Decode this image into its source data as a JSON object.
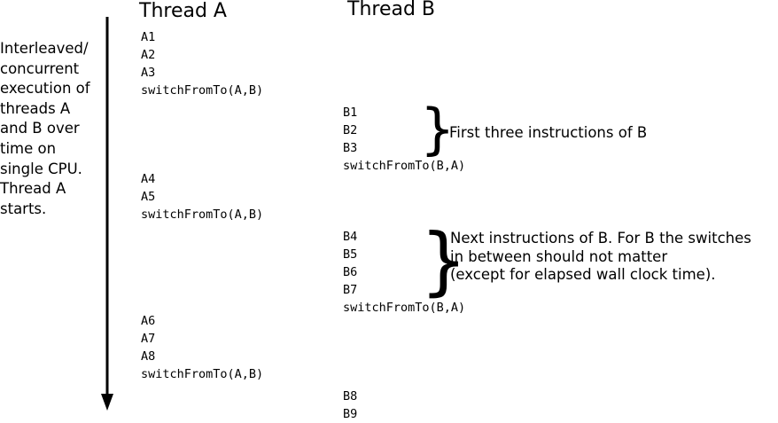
{
  "headers": {
    "thread_a": "Thread A",
    "thread_b": "Thread B"
  },
  "side_note": [
    "Interleaved/",
    "concurrent",
    "execution of",
    "threads A",
    "and B over",
    "time on",
    "single CPU.",
    "Thread A",
    "starts."
  ],
  "thread_a": {
    "block1": [
      "A1",
      "A2",
      "A3",
      "switchFromTo(A,B)"
    ],
    "block2": [
      "A4",
      "A5",
      "switchFromTo(A,B)"
    ],
    "block3": [
      "A6",
      "A7",
      "A8",
      "switchFromTo(A,B)"
    ]
  },
  "thread_b": {
    "block1": [
      "B1",
      "B2",
      "B3",
      "switchFromTo(B,A)"
    ],
    "block2": [
      "B4",
      "B5",
      "B6",
      "B7",
      "switchFromTo(B,A)"
    ],
    "block3": [
      "B8",
      "B9"
    ]
  },
  "annotations": {
    "first": [
      "First three instructions of B"
    ],
    "next": [
      "Next instructions of B. For B the switches",
      "in between should not matter",
      "(except for elapsed wall clock time)."
    ]
  },
  "brace_glyph": "}"
}
